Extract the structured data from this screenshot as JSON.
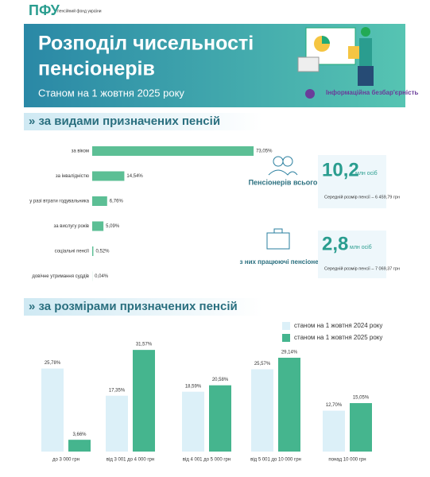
{
  "logo": {
    "mark": "ПФУ",
    "text": "пенсійний фонд україни"
  },
  "header": {
    "title_line1": "Розподіл чисельності",
    "title_line2": "пенсіонерів",
    "subtitle": "Станом на 1 жовтня 2025 року",
    "badge": "Інформаційна безбар'єрність"
  },
  "sections": [
    "за видами призначених пенсій",
    "за розмірами призначених пенсій"
  ],
  "stats": [
    {
      "label": "Пенсіонерів всього",
      "number": "10,2",
      "unit": "млн осіб",
      "note": "Середній розмір пенсії – 6 459,79 грн"
    },
    {
      "label": "з них працюючі пенсіонери",
      "number": "2,8",
      "unit": "млн осіб",
      "note": "Середній розмір пенсії – 7 069,37 грн"
    }
  ],
  "chart_data": [
    {
      "type": "hbar",
      "color": "#5cbf95",
      "categories": [
        "за віком",
        "за інвалідністю",
        "у разі втрати годувальника",
        "за вислугу років",
        "соціальні пенсії",
        "довічне утримання суддів"
      ],
      "values": [
        73.05,
        14.54,
        6.76,
        5.09,
        0.52,
        0.04
      ],
      "value_labels": [
        "73,05%",
        "14,54%",
        "6,76%",
        "5,09%",
        "0,52%",
        "0,04%"
      ]
    },
    {
      "type": "bar",
      "categories": [
        "до 3 000 грн",
        "від 3 001 до 4 000 грн",
        "від 4 001 до 5 000 грн",
        "від 5 001 до 10 000 грн",
        "понад 10 000 грн"
      ],
      "series": [
        {
          "name": "станом на 1 жовтня 2024 року",
          "color": "#dcf0f8",
          "values": [
            25.78,
            17.35,
            18.59,
            25.57,
            12.7
          ],
          "value_labels": [
            "25,78%",
            "17,35%",
            "18,59%",
            "25,57%",
            "12,70%"
          ]
        },
        {
          "name": "станом на 1 жовтня 2025 року",
          "color": "#45b58e",
          "values": [
            3.66,
            31.57,
            20.58,
            29.14,
            15.05
          ],
          "value_labels": [
            "3,66%",
            "31,57%",
            "20,58%",
            "29,14%",
            "15,05%"
          ]
        }
      ]
    }
  ]
}
